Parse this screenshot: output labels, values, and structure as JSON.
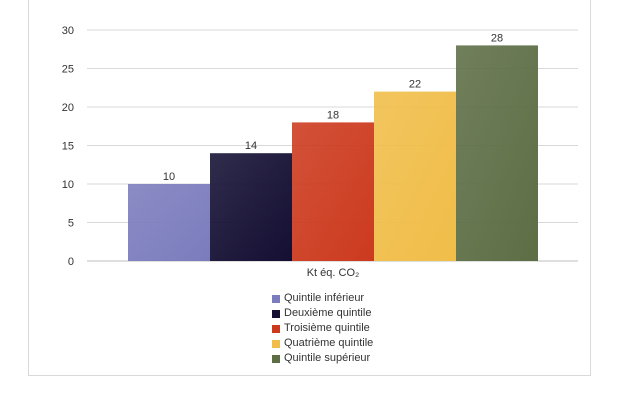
{
  "chart_data": {
    "type": "bar",
    "categories": [
      "Kt éq. CO₂"
    ],
    "series": [
      {
        "name": "Quintile inférieur",
        "values": [
          10
        ],
        "color": "#7b7cbd"
      },
      {
        "name": "Deuxième quintile",
        "values": [
          14
        ],
        "color": "#140f33"
      },
      {
        "name": "Troisième quintile",
        "values": [
          18
        ],
        "color": "#cc3a1e"
      },
      {
        "name": "Quatrième quintile",
        "values": [
          22
        ],
        "color": "#f0bd48"
      },
      {
        "name": "Quintile supérieur",
        "values": [
          28
        ],
        "color": "#5d6e45"
      }
    ],
    "ylim": [
      0,
      30
    ],
    "yticks": [
      0,
      5,
      10,
      15,
      20,
      25,
      30
    ],
    "grid": true,
    "legend": "bottom"
  }
}
